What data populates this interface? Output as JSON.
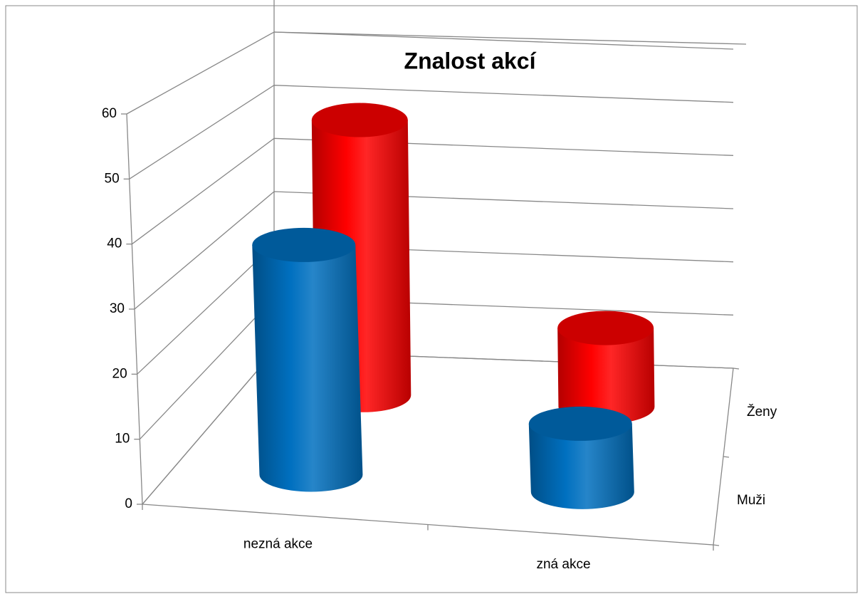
{
  "chart_data": {
    "type": "bar3d",
    "title": "Znalost akcí",
    "categories": [
      "nezná akce",
      "zná akce"
    ],
    "series": [
      {
        "name": "Muži",
        "color": "#0070c0",
        "values": [
          37,
          11
        ]
      },
      {
        "name": "Ženy",
        "color": "#ff0000",
        "values": [
          49,
          14
        ]
      }
    ],
    "ylim": [
      0,
      60
    ],
    "yticks": [
      0,
      10,
      20,
      30,
      40,
      50,
      60
    ],
    "grid": true
  }
}
